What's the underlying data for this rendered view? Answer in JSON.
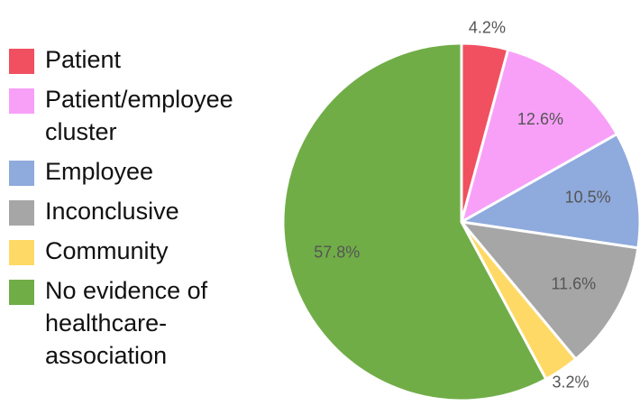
{
  "chart_data": {
    "type": "pie",
    "categories": [
      "Patient",
      "Patient/employee cluster",
      "Employee",
      "Inconclusive",
      "Community",
      "No evidence of healthcare-association"
    ],
    "values": [
      4.2,
      12.6,
      10.5,
      11.6,
      3.2,
      57.8
    ],
    "value_labels": [
      "4.2%",
      "12.6%",
      "10.5%",
      "11.6%",
      "3.2%",
      "57.8%"
    ],
    "colors": [
      "#f0505f",
      "#f8a0f8",
      "#8faadc",
      "#a6a6a6",
      "#ffd966",
      "#70ad47"
    ]
  }
}
